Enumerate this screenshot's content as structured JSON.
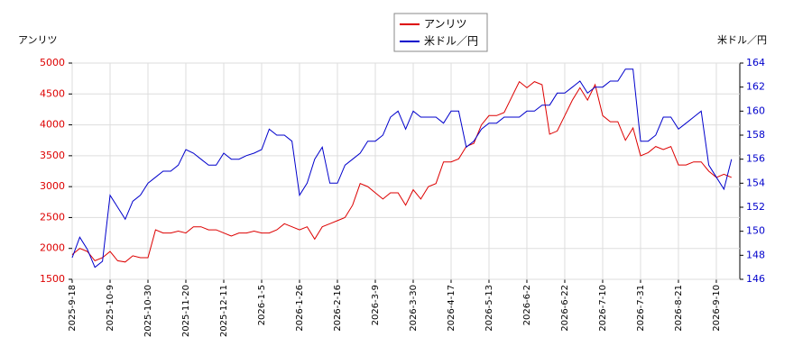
{
  "chart_data": {
    "type": "line",
    "y_label": "アンリツ",
    "y2_label": "米ドル／円",
    "categories": [
      "2025-9-18",
      null,
      null,
      null,
      null,
      "2025-10-9",
      null,
      null,
      null,
      null,
      "2025-10-30",
      null,
      null,
      null,
      null,
      "2025-11-20",
      null,
      null,
      null,
      null,
      "2025-12-11",
      null,
      null,
      null,
      null,
      "2026-1-5",
      null,
      null,
      null,
      null,
      "2026-1-26",
      null,
      null,
      null,
      null,
      "2026-2-16",
      null,
      null,
      null,
      null,
      "2026-3-9",
      null,
      null,
      null,
      null,
      "2026-3-30",
      null,
      null,
      null,
      null,
      "2026-4-17",
      null,
      null,
      null,
      null,
      "2026-5-13",
      null,
      null,
      null,
      null,
      "2026-6-2",
      null,
      null,
      null,
      null,
      "2026-6-22",
      null,
      null,
      null,
      null,
      "2026-7-10",
      null,
      null,
      null,
      null,
      "2026-7-31",
      null,
      null,
      null,
      null,
      "2026-8-21",
      null,
      null,
      null,
      null,
      "2026-9-10",
      null,
      null
    ],
    "series": [
      {
        "name": "アンリツ",
        "color": "#dd0000",
        "axis": "y",
        "values": [
          1900,
          2000,
          1950,
          1800,
          1850,
          1950,
          1800,
          1780,
          1880,
          1850,
          1850,
          2300,
          2250,
          2250,
          2280,
          2250,
          2350,
          2350,
          2300,
          2300,
          2250,
          2200,
          2250,
          2250,
          2280,
          2250,
          2250,
          2300,
          2400,
          2350,
          2300,
          2350,
          2150,
          2350,
          2400,
          2450,
          2500,
          2700,
          3050,
          3000,
          2900,
          2800,
          2900,
          2900,
          2700,
          2950,
          2800,
          3000,
          3050,
          3400,
          3400,
          3450,
          3650,
          3700,
          4000,
          4150,
          4150,
          4200,
          4450,
          4700,
          4600,
          4700,
          4650,
          3850,
          3900,
          4150,
          4400,
          4600,
          4400,
          4650,
          4150,
          4050,
          4050,
          3750,
          3950,
          3500,
          3550,
          3650,
          3600,
          3650,
          3350,
          3350,
          3400,
          3400,
          3250,
          3150,
          3200,
          3150
        ]
      },
      {
        "name": "米ドル／円",
        "color": "#0000cc",
        "axis": "y2",
        "values": [
          147.8,
          149.5,
          148.5,
          147,
          147.5,
          153,
          152,
          151,
          152.5,
          153,
          154,
          154.5,
          155,
          155,
          155.5,
          156.8,
          156.5,
          156,
          155.5,
          155.5,
          156.5,
          156,
          156,
          156.3,
          156.5,
          156.8,
          158.5,
          158,
          158,
          157.5,
          153,
          154,
          156,
          157,
          154,
          154,
          155.5,
          156,
          156.5,
          157.5,
          157.5,
          158,
          159.5,
          160,
          158.5,
          160,
          159.5,
          159.5,
          159.5,
          159,
          160,
          160,
          157,
          157.5,
          158.5,
          159,
          159,
          159.5,
          159.5,
          159.5,
          160,
          160,
          160.5,
          160.5,
          161.5,
          161.5,
          162,
          162.5,
          161.5,
          162,
          162,
          162.5,
          162.5,
          163.5,
          163.5,
          157.5,
          157.5,
          158,
          159.5,
          159.5,
          158.5,
          159,
          159.5,
          160,
          155.5,
          154.5,
          153.5,
          156
        ]
      }
    ],
    "ylim": [
      1500,
      5000
    ],
    "yticks": [
      1500,
      2000,
      2500,
      3000,
      3500,
      4000,
      4500,
      5000
    ],
    "y2lim": [
      146,
      164
    ],
    "y2ticks": [
      146,
      148,
      150,
      152,
      154,
      156,
      158,
      160,
      162,
      164
    ],
    "grid": true
  }
}
